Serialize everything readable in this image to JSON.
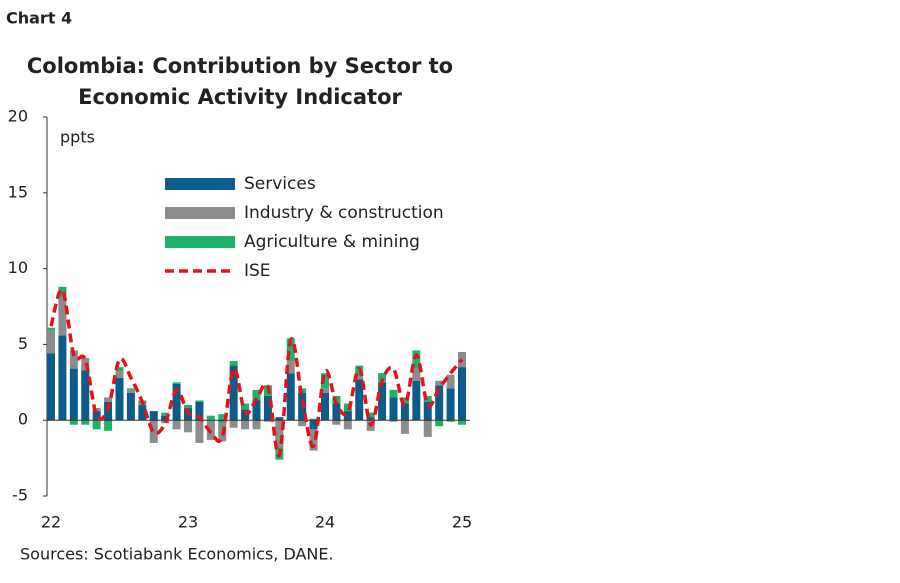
{
  "chart_label": "Chart 4",
  "chart_data": {
    "type": "bar",
    "stacked": true,
    "title": [
      "Colombia: Contribution by Sector to",
      "Economic Activity Indicator"
    ],
    "y_label": "ppts",
    "categories": [
      "22",
      null,
      null,
      null,
      null,
      null,
      null,
      null,
      null,
      null,
      null,
      null,
      "23",
      null,
      null,
      null,
      null,
      null,
      null,
      null,
      null,
      null,
      null,
      null,
      "24",
      null,
      null,
      null,
      null,
      null,
      null,
      null,
      null,
      null,
      null,
      null,
      "25"
    ],
    "series": [
      {
        "name": "Services",
        "type": "bar",
        "color": "#0b5c8a",
        "values": [
          4.4,
          5.6,
          3.4,
          3.3,
          0.6,
          1.2,
          2.8,
          1.8,
          1.0,
          0.6,
          0.3,
          2.4,
          0.8,
          1.2,
          0,
          -0.1,
          3.6,
          0.7,
          1.3,
          1.6,
          0.2,
          3.1,
          1.8,
          -0.6,
          1.8,
          1.1,
          0.6,
          2.7,
          0.2,
          2.5,
          1.5,
          1.1,
          2.6,
          1.2,
          2.3,
          2.1,
          3.5
        ]
      },
      {
        "name": "Industry & construction",
        "type": "bar",
        "color": "#8c8c8c",
        "values": [
          1.5,
          2.5,
          1.2,
          0.8,
          0.2,
          0.3,
          0.4,
          0.2,
          0.1,
          -1.5,
          -0.2,
          -0.6,
          -0.8,
          -1.5,
          -1.3,
          -1.3,
          -0.5,
          -0.6,
          -0.6,
          -0.1,
          -1.8,
          0.8,
          -0.4,
          -1.4,
          0.3,
          -0.3,
          -0.6,
          0.2,
          -0.7,
          0.1,
          -0.1,
          -0.9,
          0.8,
          -1.1,
          0.3,
          0.9,
          1.0
        ]
      },
      {
        "name": "Agriculture & mining",
        "type": "bar",
        "color": "#1db36b",
        "values": [
          0.2,
          0.7,
          -0.3,
          -0.3,
          -0.6,
          -0.7,
          0.3,
          0.1,
          0.2,
          0,
          0.2,
          0.1,
          0.2,
          0.1,
          0.3,
          0.4,
          0.3,
          0.4,
          0.7,
          0.7,
          -0.8,
          1.5,
          0.3,
          0.1,
          1.0,
          0.5,
          0.5,
          0.7,
          0.3,
          0.5,
          0.5,
          0.4,
          1.2,
          0.4,
          -0.4,
          -0.1,
          -0.3
        ]
      },
      {
        "name": "ISE",
        "type": "line",
        "dashed": true,
        "color": "#e3121b",
        "values": [
          6.2,
          8.6,
          4.3,
          4.0,
          0.3,
          0.8,
          4.0,
          2.8,
          1.2,
          -0.8,
          -0.2,
          2.0,
          0.5,
          0.2,
          -0.8,
          -1.1,
          3.4,
          0.5,
          1.4,
          2.2,
          -2.3,
          5.3,
          1.4,
          -1.7,
          3.2,
          1.1,
          0.5,
          3.4,
          -0.3,
          2.6,
          3.4,
          1.0,
          4.3,
          1.0,
          2.1,
          3.1,
          4.0
        ]
      }
    ],
    "ylim": [
      -5,
      20
    ],
    "yticks": [
      -5,
      0,
      5,
      10,
      15,
      20
    ],
    "grid": false,
    "legend": "top-center"
  },
  "source": "Sources: Scotiabank Economics, DANE."
}
